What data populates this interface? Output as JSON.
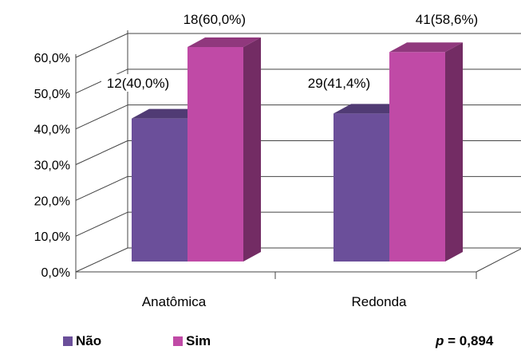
{
  "chart_data": {
    "type": "bar",
    "categories": [
      "Anatômica",
      "Redonda"
    ],
    "series": [
      {
        "name": "Não",
        "values": [
          40.0,
          41.4
        ],
        "labels": [
          "12(40,0%)",
          "29(41,4%)"
        ],
        "color": "#6b4f9a"
      },
      {
        "name": "Sim",
        "values": [
          60.0,
          58.6
        ],
        "labels": [
          "18(60,0%)",
          "41(58,6%)"
        ],
        "color": "#c04aa6"
      }
    ],
    "yticks": [
      "0,0%",
      "10,0%",
      "20,0%",
      "30,0%",
      "40,0%",
      "50,0%",
      "60,0%"
    ],
    "ylim": [
      0,
      60
    ],
    "grid": true,
    "legend": "bottom-left",
    "annotation": {
      "italic": "p",
      "text": " = 0,894"
    }
  }
}
